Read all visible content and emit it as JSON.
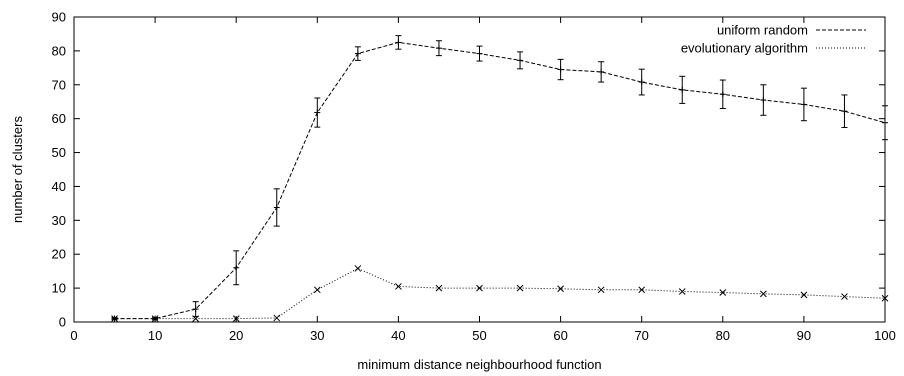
{
  "chart_data": {
    "type": "line",
    "title": "",
    "xlabel": "minimum distance neighbourhood function",
    "ylabel": "number of clusters",
    "xlim": [
      0,
      100
    ],
    "ylim": [
      0,
      90
    ],
    "x_ticks": [
      0,
      10,
      20,
      30,
      40,
      50,
      60,
      70,
      80,
      90,
      100
    ],
    "y_ticks": [
      0,
      10,
      20,
      30,
      40,
      50,
      60,
      70,
      80,
      90
    ],
    "grid": false,
    "legend_position": "top-right",
    "series": [
      {
        "name": "uniform random",
        "style": "dashed",
        "marker": "plus",
        "color": "#000000",
        "points": [
          {
            "x": 5,
            "y": 1,
            "err": 0.3
          },
          {
            "x": 10,
            "y": 1,
            "err": 0.3
          },
          {
            "x": 15,
            "y": 3.8,
            "err": 2.2
          },
          {
            "x": 20,
            "y": 16,
            "err": 5
          },
          {
            "x": 25,
            "y": 33.8,
            "err": 5.5
          },
          {
            "x": 30,
            "y": 61.8,
            "err": 4.3
          },
          {
            "x": 35,
            "y": 79.2,
            "err": 2
          },
          {
            "x": 40,
            "y": 82.5,
            "err": 2
          },
          {
            "x": 45,
            "y": 80.8,
            "err": 2.2
          },
          {
            "x": 50,
            "y": 79.2,
            "err": 2.2
          },
          {
            "x": 55,
            "y": 77.2,
            "err": 2.5
          },
          {
            "x": 60,
            "y": 74.5,
            "err": 3
          },
          {
            "x": 65,
            "y": 73.8,
            "err": 3
          },
          {
            "x": 70,
            "y": 70.8,
            "err": 3.8
          },
          {
            "x": 75,
            "y": 68.5,
            "err": 4
          },
          {
            "x": 80,
            "y": 67.2,
            "err": 4.2
          },
          {
            "x": 85,
            "y": 65.5,
            "err": 4.5
          },
          {
            "x": 90,
            "y": 64.2,
            "err": 4.8
          },
          {
            "x": 95,
            "y": 62.2,
            "err": 4.8
          },
          {
            "x": 100,
            "y": 58.8,
            "err": 5
          }
        ]
      },
      {
        "name": "evolutionary algorithm",
        "style": "dotted",
        "marker": "cross",
        "color": "#000000",
        "points": [
          {
            "x": 5,
            "y": 1
          },
          {
            "x": 10,
            "y": 1
          },
          {
            "x": 15,
            "y": 1
          },
          {
            "x": 20,
            "y": 1
          },
          {
            "x": 25,
            "y": 1.2
          },
          {
            "x": 30,
            "y": 9.5
          },
          {
            "x": 35,
            "y": 15.8
          },
          {
            "x": 40,
            "y": 10.5
          },
          {
            "x": 45,
            "y": 10
          },
          {
            "x": 50,
            "y": 10
          },
          {
            "x": 55,
            "y": 10
          },
          {
            "x": 60,
            "y": 9.8
          },
          {
            "x": 65,
            "y": 9.5
          },
          {
            "x": 70,
            "y": 9.5
          },
          {
            "x": 75,
            "y": 9
          },
          {
            "x": 80,
            "y": 8.7
          },
          {
            "x": 85,
            "y": 8.3
          },
          {
            "x": 90,
            "y": 8
          },
          {
            "x": 95,
            "y": 7.5
          },
          {
            "x": 100,
            "y": 7
          }
        ]
      }
    ]
  }
}
